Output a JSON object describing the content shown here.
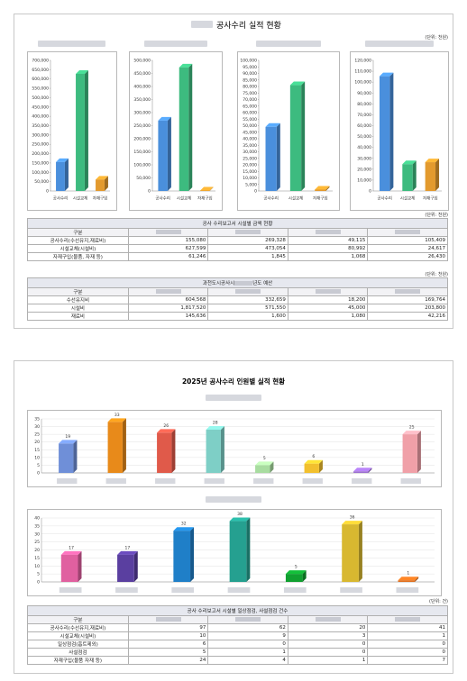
{
  "report1": {
    "title": "공사수리 실적 현황",
    "unit": "(단위: 천원)",
    "table1": {
      "title": "공사 수리보고서 시설별 금액 현황",
      "unit": "(단위: 천원)",
      "header": "구분",
      "rows": [
        [
          "공사수리(수선유지,재료비)",
          "155,080",
          "269,328",
          "49,115",
          "105,409"
        ],
        [
          "시설교체(시설비)",
          "627,599",
          "473,054",
          "80,992",
          "24,617"
        ],
        [
          "자재구입(물품, 자재 등)",
          "61,246",
          "1,845",
          "1,068",
          "26,430"
        ]
      ]
    },
    "table2": {
      "title": "과천도시공사시",
      "title_end": "년도 예산",
      "unit": "(단위: 천원)",
      "header": "구분",
      "rows": [
        [
          "수선유지비",
          "604,568",
          "332,659",
          "18,200",
          "169,764"
        ],
        [
          "시설비",
          "1,817,520",
          "571,550",
          "45,000",
          "203,800"
        ],
        [
          "재료비",
          "145,636",
          "1,600",
          "1,080",
          "42,216"
        ]
      ]
    }
  },
  "report2": {
    "title": "2025년 공사수리 인원별 실적 현황",
    "table3": {
      "title": "공사 수리보고서 시설별 일상점검, 사설점검 건수",
      "unit": "(단위: 건)",
      "header": "구분",
      "rows": [
        [
          "공사수리(수선유지,재료비)",
          "97",
          "62",
          "20",
          "41"
        ],
        [
          "시설교체(시설비)",
          "10",
          "9",
          "3",
          "1"
        ],
        [
          "일상점검(흡트제외)",
          "6",
          "0",
          "0",
          "0"
        ],
        [
          "사설점검",
          "5",
          "1",
          "0",
          "0"
        ],
        [
          "자재구입(물품 자재 등)",
          "24",
          "4",
          "1",
          "7"
        ]
      ]
    }
  },
  "chart_data": [
    {
      "type": "bar3d",
      "categories": [
        "공사수리",
        "시설교체",
        "자재구입"
      ],
      "values": [
        155080,
        627599,
        61246
      ],
      "colors": [
        "#4a8fdc",
        "#3dbb7f",
        "#e39a2e"
      ],
      "ylim": [
        0,
        700000
      ],
      "yticks": [
        0,
        {
          "value": 50000,
          "label": "50,000"
        },
        {
          "value": 100000,
          "label": "100,000"
        },
        {
          "value": 150000,
          "label": "150,000"
        },
        {
          "value": 200000,
          "label": "200,000"
        },
        {
          "value": 250000,
          "label": "250,000"
        },
        {
          "value": 300000,
          "label": "300,000"
        },
        {
          "value": 350000,
          "label": "350,000"
        },
        {
          "value": 400000,
          "label": "400,000"
        },
        {
          "value": 450000,
          "label": "450,000"
        },
        {
          "value": 500000,
          "label": "500,000"
        },
        {
          "value": 550000,
          "label": "550,000"
        },
        {
          "value": 600000,
          "label": "600,000"
        },
        {
          "value": 650000,
          "label": "650,000"
        },
        {
          "value": 700000,
          "label": "700,000"
        }
      ]
    },
    {
      "type": "bar3d",
      "categories": [
        "공사수리",
        "시설교체",
        "자재구입"
      ],
      "values": [
        269328,
        473054,
        1845
      ],
      "colors": [
        "#4a8fdc",
        "#3dbb7f",
        "#e39a2e"
      ],
      "ylim": [
        0,
        500000
      ],
      "yticks": [
        0,
        {
          "value": 50000,
          "label": "50,000"
        },
        {
          "value": 100000,
          "label": "100,000"
        },
        {
          "value": 150000,
          "label": "150,000"
        },
        {
          "value": 200000,
          "label": "200,000"
        },
        {
          "value": 250000,
          "label": "250,000"
        },
        {
          "value": 300000,
          "label": "300,000"
        },
        {
          "value": 350000,
          "label": "350,000"
        },
        {
          "value": 400000,
          "label": "400,000"
        },
        {
          "value": 450000,
          "label": "450,000"
        },
        {
          "value": 500000,
          "label": "500,000"
        }
      ]
    },
    {
      "type": "bar3d",
      "categories": [
        "공사수리",
        "시설교체",
        "자재구입"
      ],
      "values": [
        49115,
        80992,
        1068
      ],
      "colors": [
        "#4a8fdc",
        "#3dbb7f",
        "#e39a2e"
      ],
      "ylim": [
        0,
        100000
      ],
      "yticks": [
        0,
        {
          "value": 5000,
          "label": "5,000"
        },
        {
          "value": 10000,
          "label": "10,000"
        },
        {
          "value": 15000,
          "label": "15,000"
        },
        {
          "value": 20000,
          "label": "20,000"
        },
        {
          "value": 25000,
          "label": "25,000"
        },
        {
          "value": 30000,
          "label": "30,000"
        },
        {
          "value": 35000,
          "label": "35,000"
        },
        {
          "value": 40000,
          "label": "40,000"
        },
        {
          "value": 45000,
          "label": "45,000"
        },
        {
          "value": 50000,
          "label": "50,000"
        },
        {
          "value": 55000,
          "label": "55,000"
        },
        {
          "value": 60000,
          "label": "60,000"
        },
        {
          "value": 65000,
          "label": "65,000"
        },
        {
          "value": 70000,
          "label": "70,000"
        },
        {
          "value": 75000,
          "label": "75,000"
        },
        {
          "value": 80000,
          "label": "80,000"
        },
        {
          "value": 85000,
          "label": "85,000"
        },
        {
          "value": 90000,
          "label": "90,000"
        },
        {
          "value": 95000,
          "label": "95,000"
        },
        {
          "value": 100000,
          "label": "100,000"
        }
      ]
    },
    {
      "type": "bar3d",
      "categories": [
        "공사수리",
        "시설교체",
        "자재구입"
      ],
      "values": [
        105409,
        24617,
        26430
      ],
      "colors": [
        "#4a8fdc",
        "#3dbb7f",
        "#e39a2e"
      ],
      "ylim": [
        0,
        120000
      ],
      "yticks": [
        0,
        {
          "value": 10000,
          "label": "10,000"
        },
        {
          "value": 20000,
          "label": "20,000"
        },
        {
          "value": 30000,
          "label": "30,000"
        },
        {
          "value": 40000,
          "label": "40,000"
        },
        {
          "value": 50000,
          "label": "50,000"
        },
        {
          "value": 60000,
          "label": "60,000"
        },
        {
          "value": 70000,
          "label": "70,000"
        },
        {
          "value": 80000,
          "label": "80,000"
        },
        {
          "value": 90000,
          "label": "90,000"
        },
        {
          "value": 100000,
          "label": "100,000"
        },
        {
          "value": 110000,
          "label": "110,000"
        },
        {
          "value": 120000,
          "label": "120,000"
        }
      ]
    },
    {
      "type": "bar3d",
      "categories": [
        null,
        null,
        null,
        null,
        null,
        null,
        null,
        null
      ],
      "values": [
        19,
        33,
        26,
        28,
        5,
        6,
        1,
        25
      ],
      "colors": [
        "#6f8fd8",
        "#e88a1a",
        "#e05a4a",
        "#7ecfc6",
        "#a8dca0",
        "#f2c02e",
        "#9b6fd0",
        "#f0a0a8"
      ],
      "ylim": [
        0,
        35
      ],
      "yticks": [
        0,
        5,
        10,
        15,
        20,
        25,
        30,
        35
      ],
      "grid": true,
      "data_labels": true
    },
    {
      "type": "bar3d",
      "categories": [
        null,
        null,
        null,
        null,
        null,
        null,
        null
      ],
      "values": [
        17,
        17,
        32,
        38,
        5,
        36,
        1
      ],
      "colors": [
        "#e060a0",
        "#5a3fa0",
        "#1f7fc8",
        "#25a090",
        "#10a030",
        "#d8b830",
        "#e07020"
      ],
      "ylim": [
        0,
        40
      ],
      "yticks": [
        0,
        5,
        10,
        15,
        20,
        25,
        30,
        35,
        40
      ],
      "grid": true,
      "data_labels": true
    }
  ]
}
